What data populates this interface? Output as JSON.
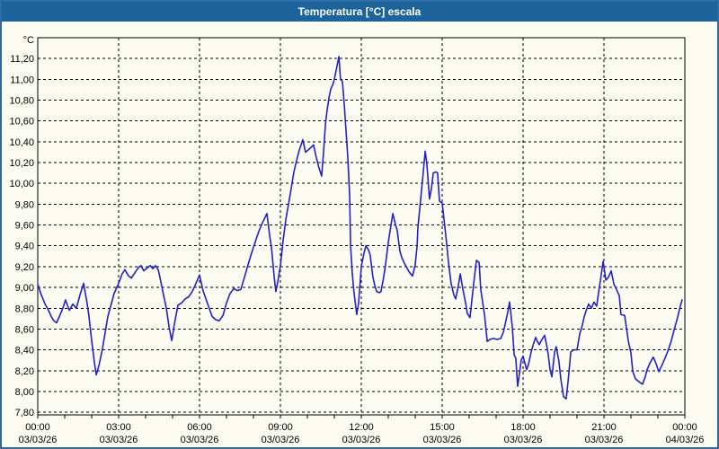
{
  "window": {
    "title": "Temperatura [°C] escala"
  },
  "colors": {
    "titlebar_bg": "#1E649C",
    "titlebar_text": "#FFFFFF",
    "window_bg": "#FCFCF2",
    "window_border": "#2E6DA4",
    "plot_border": "#000000",
    "gridline": "#000000",
    "series_line": "#2121C8",
    "axis_text": "#000000"
  },
  "chart_data": {
    "type": "line",
    "title": "Temperatura [°C] escala",
    "ylabel": "°C",
    "legend": "none",
    "grid": "dashed",
    "y_axis": {
      "min": 7.8,
      "max": 11.2,
      "step": 0.2,
      "axis_top_value": 11.4,
      "axis_bottom_value": 7.77,
      "ticks": [
        {
          "value": 7.8,
          "label": "7,80"
        },
        {
          "value": 8.0,
          "label": "8,00"
        },
        {
          "value": 8.2,
          "label": "8,20"
        },
        {
          "value": 8.4,
          "label": "8,40"
        },
        {
          "value": 8.6,
          "label": "8,60"
        },
        {
          "value": 8.8,
          "label": "8,80"
        },
        {
          "value": 9.0,
          "label": "9,00"
        },
        {
          "value": 9.2,
          "label": "9,20"
        },
        {
          "value": 9.4,
          "label": "9,40"
        },
        {
          "value": 9.6,
          "label": "9,60"
        },
        {
          "value": 9.8,
          "label": "9,80"
        },
        {
          "value": 10.0,
          "label": "10,00"
        },
        {
          "value": 10.2,
          "label": "10,20"
        },
        {
          "value": 10.4,
          "label": "10,40"
        },
        {
          "value": 10.6,
          "label": "10,60"
        },
        {
          "value": 10.8,
          "label": "10,80"
        },
        {
          "value": 11.0,
          "label": "11,00"
        },
        {
          "value": 11.2,
          "label": "11,20"
        }
      ]
    },
    "x_axis": {
      "unit": "hours",
      "span_hours": 24,
      "minor_tick_every_hours": 1,
      "ticks": [
        {
          "hour": 0,
          "time": "00:00",
          "date": "03/03/26"
        },
        {
          "hour": 3,
          "time": "03:00",
          "date": "03/03/26"
        },
        {
          "hour": 6,
          "time": "06:00",
          "date": "03/03/26"
        },
        {
          "hour": 9,
          "time": "09:00",
          "date": "03/03/26"
        },
        {
          "hour": 12,
          "time": "12:00",
          "date": "03/03/26"
        },
        {
          "hour": 15,
          "time": "15:00",
          "date": "03/03/26"
        },
        {
          "hour": 18,
          "time": "18:00",
          "date": "03/03/26"
        },
        {
          "hour": 21,
          "time": "21:00",
          "date": "03/03/26"
        },
        {
          "hour": 24,
          "time": "00:00",
          "date": "04/03/26"
        }
      ]
    },
    "series": [
      {
        "name": "Temperatura",
        "color": "#2121C8",
        "points": [
          [
            0.0,
            9.03
          ],
          [
            0.13,
            8.93
          ],
          [
            0.27,
            8.84
          ],
          [
            0.4,
            8.78
          ],
          [
            0.5,
            8.72
          ],
          [
            0.6,
            8.68
          ],
          [
            0.7,
            8.66
          ],
          [
            0.8,
            8.72
          ],
          [
            0.93,
            8.8
          ],
          [
            1.03,
            8.88
          ],
          [
            1.17,
            8.78
          ],
          [
            1.3,
            8.84
          ],
          [
            1.43,
            8.8
          ],
          [
            1.57,
            8.93
          ],
          [
            1.7,
            9.04
          ],
          [
            1.83,
            8.85
          ],
          [
            1.9,
            8.72
          ],
          [
            2.0,
            8.49
          ],
          [
            2.1,
            8.28
          ],
          [
            2.17,
            8.16
          ],
          [
            2.27,
            8.25
          ],
          [
            2.4,
            8.41
          ],
          [
            2.6,
            8.72
          ],
          [
            2.83,
            8.94
          ],
          [
            3.0,
            9.04
          ],
          [
            3.13,
            9.13
          ],
          [
            3.23,
            9.17
          ],
          [
            3.37,
            9.11
          ],
          [
            3.47,
            9.09
          ],
          [
            3.6,
            9.14
          ],
          [
            3.73,
            9.19
          ],
          [
            3.83,
            9.21
          ],
          [
            3.93,
            9.16
          ],
          [
            4.07,
            9.19
          ],
          [
            4.17,
            9.21
          ],
          [
            4.27,
            9.18
          ],
          [
            4.37,
            9.21
          ],
          [
            4.47,
            9.17
          ],
          [
            4.57,
            9.05
          ],
          [
            4.67,
            8.92
          ],
          [
            4.77,
            8.8
          ],
          [
            4.87,
            8.62
          ],
          [
            4.97,
            8.49
          ],
          [
            5.07,
            8.65
          ],
          [
            5.2,
            8.83
          ],
          [
            5.33,
            8.85
          ],
          [
            5.47,
            8.89
          ],
          [
            5.6,
            8.91
          ],
          [
            5.73,
            8.96
          ],
          [
            5.87,
            9.04
          ],
          [
            6.0,
            9.12
          ],
          [
            6.13,
            8.97
          ],
          [
            6.33,
            8.82
          ],
          [
            6.47,
            8.72
          ],
          [
            6.6,
            8.69
          ],
          [
            6.73,
            8.68
          ],
          [
            6.87,
            8.73
          ],
          [
            7.0,
            8.85
          ],
          [
            7.13,
            8.94
          ],
          [
            7.27,
            8.99
          ],
          [
            7.4,
            8.97
          ],
          [
            7.53,
            8.98
          ],
          [
            7.67,
            9.1
          ],
          [
            7.8,
            9.22
          ],
          [
            7.93,
            9.33
          ],
          [
            8.07,
            9.44
          ],
          [
            8.2,
            9.54
          ],
          [
            8.33,
            9.62
          ],
          [
            8.5,
            9.71
          ],
          [
            8.6,
            9.5
          ],
          [
            8.67,
            9.38
          ],
          [
            8.77,
            9.1
          ],
          [
            8.83,
            8.96
          ],
          [
            8.9,
            9.05
          ],
          [
            9.0,
            9.21
          ],
          [
            9.1,
            9.45
          ],
          [
            9.2,
            9.65
          ],
          [
            9.3,
            9.8
          ],
          [
            9.4,
            9.95
          ],
          [
            9.5,
            10.11
          ],
          [
            9.6,
            10.22
          ],
          [
            9.7,
            10.32
          ],
          [
            9.83,
            10.42
          ],
          [
            9.93,
            10.3
          ],
          [
            10.07,
            10.33
          ],
          [
            10.23,
            10.37
          ],
          [
            10.33,
            10.25
          ],
          [
            10.43,
            10.15
          ],
          [
            10.53,
            10.07
          ],
          [
            10.6,
            10.3
          ],
          [
            10.67,
            10.57
          ],
          [
            10.73,
            10.7
          ],
          [
            10.8,
            10.82
          ],
          [
            10.87,
            10.91
          ],
          [
            10.93,
            10.94
          ],
          [
            11.0,
            11.0
          ],
          [
            11.1,
            11.13
          ],
          [
            11.17,
            11.22
          ],
          [
            11.23,
            11.0
          ],
          [
            11.3,
            10.98
          ],
          [
            11.37,
            10.75
          ],
          [
            11.43,
            10.52
          ],
          [
            11.5,
            10.25
          ],
          [
            11.57,
            9.87
          ],
          [
            11.6,
            9.41
          ],
          [
            11.67,
            9.12
          ],
          [
            11.73,
            8.95
          ],
          [
            11.83,
            8.74
          ],
          [
            11.9,
            8.85
          ],
          [
            12.0,
            9.2
          ],
          [
            12.1,
            9.33
          ],
          [
            12.17,
            9.4
          ],
          [
            12.27,
            9.36
          ],
          [
            12.33,
            9.31
          ],
          [
            12.43,
            9.1
          ],
          [
            12.5,
            9.02
          ],
          [
            12.57,
            8.96
          ],
          [
            12.67,
            8.95
          ],
          [
            12.73,
            8.96
          ],
          [
            12.83,
            9.1
          ],
          [
            12.9,
            9.22
          ],
          [
            13.0,
            9.43
          ],
          [
            13.07,
            9.55
          ],
          [
            13.17,
            9.71
          ],
          [
            13.27,
            9.6
          ],
          [
            13.33,
            9.55
          ],
          [
            13.43,
            9.35
          ],
          [
            13.5,
            9.29
          ],
          [
            13.6,
            9.23
          ],
          [
            13.67,
            9.2
          ],
          [
            13.77,
            9.15
          ],
          [
            13.9,
            9.11
          ],
          [
            14.0,
            9.22
          ],
          [
            14.07,
            9.4
          ],
          [
            14.1,
            9.58
          ],
          [
            14.17,
            9.76
          ],
          [
            14.27,
            10.03
          ],
          [
            14.37,
            10.31
          ],
          [
            14.43,
            10.19
          ],
          [
            14.53,
            9.85
          ],
          [
            14.6,
            9.95
          ],
          [
            14.67,
            10.1
          ],
          [
            14.77,
            10.11
          ],
          [
            14.83,
            10.1
          ],
          [
            14.9,
            9.83
          ],
          [
            15.0,
            9.81
          ],
          [
            15.1,
            9.58
          ],
          [
            15.17,
            9.41
          ],
          [
            15.23,
            9.25
          ],
          [
            15.33,
            9.04
          ],
          [
            15.43,
            8.93
          ],
          [
            15.5,
            8.89
          ],
          [
            15.6,
            9.02
          ],
          [
            15.67,
            9.13
          ],
          [
            15.77,
            8.98
          ],
          [
            15.87,
            8.85
          ],
          [
            15.93,
            8.75
          ],
          [
            16.03,
            8.71
          ],
          [
            16.17,
            9.04
          ],
          [
            16.27,
            9.26
          ],
          [
            16.37,
            9.24
          ],
          [
            16.43,
            8.98
          ],
          [
            16.57,
            8.74
          ],
          [
            16.67,
            8.48
          ],
          [
            16.77,
            8.5
          ],
          [
            16.9,
            8.51
          ],
          [
            17.03,
            8.5
          ],
          [
            17.17,
            8.51
          ],
          [
            17.27,
            8.57
          ],
          [
            17.33,
            8.64
          ],
          [
            17.43,
            8.76
          ],
          [
            17.5,
            8.86
          ],
          [
            17.6,
            8.62
          ],
          [
            17.67,
            8.35
          ],
          [
            17.73,
            8.32
          ],
          [
            17.8,
            8.05
          ],
          [
            17.87,
            8.18
          ],
          [
            17.93,
            8.3
          ],
          [
            18.0,
            8.34
          ],
          [
            18.07,
            8.27
          ],
          [
            18.13,
            8.21
          ],
          [
            18.2,
            8.26
          ],
          [
            18.3,
            8.38
          ],
          [
            18.4,
            8.47
          ],
          [
            18.47,
            8.52
          ],
          [
            18.53,
            8.48
          ],
          [
            18.6,
            8.45
          ],
          [
            18.7,
            8.5
          ],
          [
            18.8,
            8.54
          ],
          [
            18.87,
            8.45
          ],
          [
            18.93,
            8.36
          ],
          [
            19.0,
            8.21
          ],
          [
            19.07,
            8.14
          ],
          [
            19.17,
            8.38
          ],
          [
            19.23,
            8.43
          ],
          [
            19.33,
            8.29
          ],
          [
            19.4,
            8.12
          ],
          [
            19.5,
            7.95
          ],
          [
            19.6,
            7.93
          ],
          [
            19.67,
            8.1
          ],
          [
            19.77,
            8.38
          ],
          [
            19.87,
            8.4
          ],
          [
            20.0,
            8.4
          ],
          [
            20.1,
            8.55
          ],
          [
            20.2,
            8.64
          ],
          [
            20.27,
            8.72
          ],
          [
            20.37,
            8.8
          ],
          [
            20.43,
            8.84
          ],
          [
            20.53,
            8.8
          ],
          [
            20.63,
            8.86
          ],
          [
            20.73,
            8.82
          ],
          [
            20.8,
            8.95
          ],
          [
            20.87,
            9.07
          ],
          [
            20.97,
            9.25
          ],
          [
            21.07,
            9.07
          ],
          [
            21.17,
            9.1
          ],
          [
            21.27,
            9.16
          ],
          [
            21.37,
            9.03
          ],
          [
            21.43,
            9.0
          ],
          [
            21.57,
            8.92
          ],
          [
            21.63,
            8.74
          ],
          [
            21.77,
            8.73
          ],
          [
            21.9,
            8.49
          ],
          [
            22.0,
            8.37
          ],
          [
            22.07,
            8.19
          ],
          [
            22.17,
            8.12
          ],
          [
            22.27,
            8.1
          ],
          [
            22.37,
            8.08
          ],
          [
            22.43,
            8.07
          ],
          [
            22.53,
            8.14
          ],
          [
            22.6,
            8.21
          ],
          [
            22.7,
            8.27
          ],
          [
            22.83,
            8.33
          ],
          [
            22.93,
            8.27
          ],
          [
            23.03,
            8.19
          ],
          [
            23.13,
            8.24
          ],
          [
            23.23,
            8.3
          ],
          [
            23.33,
            8.36
          ],
          [
            23.4,
            8.41
          ],
          [
            23.5,
            8.49
          ],
          [
            23.6,
            8.59
          ],
          [
            23.73,
            8.71
          ],
          [
            23.83,
            8.82
          ],
          [
            23.9,
            8.88
          ]
        ]
      }
    ]
  }
}
